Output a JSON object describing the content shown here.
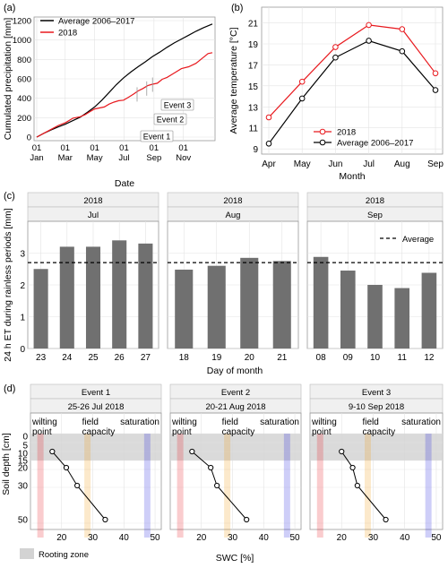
{
  "chart_data": [
    {
      "panel": "(a)",
      "type": "line",
      "xlabel": "Date",
      "ylabel": "Cumulated precipitation [mm]",
      "ylim": [
        0,
        1200
      ],
      "yticks": [
        "0",
        "200",
        "400",
        "600",
        "800",
        "1000",
        "1200"
      ],
      "xticks": [
        {
          "day": 0,
          "l1": "01",
          "l2": "Jan"
        },
        {
          "day": 59,
          "l1": "01",
          "l2": "Mar"
        },
        {
          "day": 120,
          "l1": "01",
          "l2": "May"
        },
        {
          "day": 181,
          "l1": "01",
          "l2": "Jul"
        },
        {
          "day": 243,
          "l1": "01",
          "l2": "Sep"
        },
        {
          "day": 304,
          "l1": "01",
          "l2": "Nov"
        }
      ],
      "series": [
        {
          "name": "Average 2006–2017",
          "color": "#000000",
          "x": [
            0,
            15,
            30,
            45,
            60,
            75,
            90,
            105,
            120,
            135,
            150,
            165,
            180,
            195,
            210,
            225,
            240,
            255,
            270,
            285,
            300,
            315,
            330,
            345,
            364
          ],
          "y": [
            0,
            40,
            75,
            105,
            135,
            170,
            205,
            255,
            310,
            380,
            460,
            540,
            610,
            670,
            725,
            775,
            830,
            875,
            925,
            970,
            1010,
            1050,
            1090,
            1125,
            1165
          ]
        },
        {
          "name": "2018",
          "color": "#e8191e",
          "x": [
            0,
            15,
            30,
            45,
            60,
            75,
            90,
            100,
            110,
            120,
            130,
            140,
            150,
            160,
            170,
            180,
            190,
            200,
            210,
            220,
            230,
            240,
            250,
            260,
            270,
            285,
            300,
            315,
            330,
            345,
            355,
            364
          ],
          "y": [
            0,
            40,
            80,
            120,
            150,
            195,
            210,
            230,
            260,
            290,
            300,
            310,
            340,
            360,
            375,
            380,
            410,
            440,
            475,
            500,
            530,
            545,
            555,
            595,
            615,
            660,
            705,
            725,
            760,
            820,
            860,
            870
          ]
        }
      ],
      "annotations": [
        "Event 1",
        "Event 2",
        "Event 3"
      ]
    },
    {
      "panel": "(b)",
      "type": "line",
      "xlabel": "Month",
      "ylabel": "Average temperature [°C]",
      "ylim": [
        8.5,
        22.5
      ],
      "yticks": [
        9,
        11,
        13,
        15,
        17,
        19,
        21
      ],
      "categories": [
        "Apr",
        "May",
        "Jun",
        "Jul",
        "Aug",
        "Sep"
      ],
      "series": [
        {
          "name": "2018",
          "color": "#e8191e",
          "values": [
            12.0,
            15.4,
            18.7,
            20.8,
            20.4,
            16.2
          ]
        },
        {
          "name": "Average 2006–2017",
          "color": "#000000",
          "values": [
            9.5,
            13.8,
            17.7,
            19.3,
            18.3,
            14.6
          ]
        }
      ]
    },
    {
      "panel": "(c)",
      "type": "bar",
      "xlabel": "Day of month",
      "ylabel": "24 h ET during rainless periods [mm]",
      "ylim": [
        0,
        4.0
      ],
      "yticks": [
        0,
        1,
        2,
        3
      ],
      "average": 2.7,
      "average_label": "Average",
      "facets": [
        {
          "year": "2018",
          "month": "Jul",
          "categories": [
            "23",
            "24",
            "25",
            "26",
            "27"
          ],
          "values": [
            2.5,
            3.2,
            3.2,
            3.4,
            3.3
          ]
        },
        {
          "year": "2018",
          "month": "Aug",
          "categories": [
            "18",
            "19",
            "20",
            "21"
          ],
          "values": [
            2.48,
            2.6,
            2.85,
            2.75
          ]
        },
        {
          "year": "2018",
          "month": "Sep",
          "categories": [
            "08",
            "09",
            "10",
            "11",
            "12"
          ],
          "values": [
            2.88,
            2.45,
            2.0,
            1.9,
            2.38
          ]
        }
      ]
    },
    {
      "panel": "(d)",
      "type": "scatter",
      "xlabel": "SWC [%]",
      "ylabel": "Soil depth [cm]",
      "xlim": [
        10,
        52
      ],
      "xticks": [
        20,
        30,
        40,
        50
      ],
      "yticks": [
        0,
        5,
        10,
        15,
        20,
        30,
        50
      ],
      "depth_range": [
        0,
        50
      ],
      "rooting_zone": [
        0,
        15
      ],
      "rooting_label": "Rooting zone",
      "thresholds": [
        {
          "label1": "wilting",
          "label2": "point",
          "swc": 13.2,
          "color": "#e8191e"
        },
        {
          "label1": "field",
          "label2": "capacity",
          "swc": 28.3,
          "color": "#f39c12"
        },
        {
          "label1": "saturation",
          "label2": "",
          "swc": 47.5,
          "color": "#1f1fe0"
        }
      ],
      "facets": [
        {
          "event": "Event 1",
          "date": "25-26 Jul 2018",
          "depth": [
            10,
            20,
            30,
            50
          ],
          "swc": [
            17,
            21.5,
            25,
            34
          ]
        },
        {
          "event": "Event 2",
          "date": "20-21 Aug 2018",
          "depth": [
            10,
            20,
            30,
            50
          ],
          "swc": [
            17,
            23,
            25,
            34.5
          ]
        },
        {
          "event": "Event 3",
          "date": "9-10 Sep 2018",
          "depth": [
            10,
            20,
            30,
            50
          ],
          "swc": [
            20,
            23.5,
            25,
            34
          ]
        }
      ]
    }
  ]
}
